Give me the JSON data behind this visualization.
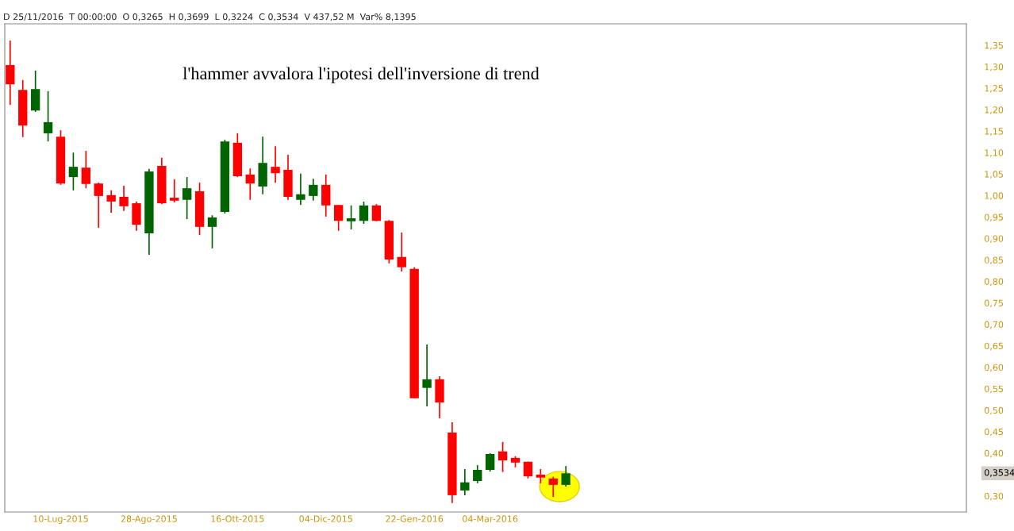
{
  "chart_data": {
    "type": "candlestick",
    "x": [
      "2015-06-12",
      "2015-06-19",
      "2015-06-26",
      "2015-07-03",
      "2015-07-10",
      "2015-07-17",
      "2015-07-24",
      "2015-07-31",
      "2015-08-07",
      "2015-08-14",
      "2015-08-21",
      "2015-08-28",
      "2015-09-04",
      "2015-09-11",
      "2015-09-18",
      "2015-09-25",
      "2015-10-02",
      "2015-10-09",
      "2015-10-16",
      "2015-10-23",
      "2015-10-30",
      "2015-11-06",
      "2015-11-13",
      "2015-11-20",
      "2015-11-27",
      "2015-12-04",
      "2015-12-11",
      "2015-12-18",
      "2015-12-25",
      "2016-01-01",
      "2016-01-08",
      "2016-01-15",
      "2016-01-22",
      "2016-01-29",
      "2016-02-05",
      "2016-02-12",
      "2016-02-19",
      "2016-02-26",
      "2016-03-04",
      "2016-03-11",
      "2016-03-18",
      "2016-03-25",
      "2016-04-01",
      "2016-04-08",
      "2016-04-15"
    ],
    "ohlc": [
      [
        1.304,
        1.361,
        1.211,
        1.259
      ],
      [
        1.246,
        1.269,
        1.136,
        1.163
      ],
      [
        1.198,
        1.291,
        1.195,
        1.248
      ],
      [
        1.145,
        1.243,
        1.126,
        1.171
      ],
      [
        1.137,
        1.152,
        1.025,
        1.028
      ],
      [
        1.043,
        1.1,
        1.012,
        1.067
      ],
      [
        1.065,
        1.104,
        1.017,
        1.027
      ],
      [
        1.028,
        1.03,
        0.925,
        0.999
      ],
      [
        1.001,
        1.012,
        0.96,
        0.986
      ],
      [
        0.997,
        1.023,
        0.964,
        0.975
      ],
      [
        0.982,
        0.986,
        0.918,
        0.932
      ],
      [
        0.912,
        1.062,
        0.862,
        1.056
      ],
      [
        1.069,
        1.088,
        0.98,
        0.982
      ],
      [
        0.995,
        1.038,
        0.984,
        0.988
      ],
      [
        0.99,
        1.043,
        0.945,
        1.017
      ],
      [
        1.01,
        1.03,
        0.908,
        0.927
      ],
      [
        0.927,
        0.954,
        0.877,
        0.949
      ],
      [
        0.962,
        1.13,
        0.958,
        1.126
      ],
      [
        1.123,
        1.145,
        1.043,
        1.045
      ],
      [
        1.049,
        1.063,
        0.99,
        1.028
      ],
      [
        1.021,
        1.137,
        1.003,
        1.076
      ],
      [
        1.067,
        1.115,
        1.03,
        1.052
      ],
      [
        1.06,
        1.095,
        0.99,
        0.997
      ],
      [
        0.99,
        1.051,
        0.978,
        1.003
      ],
      [
        0.999,
        1.039,
        0.988,
        1.025
      ],
      [
        1.025,
        1.049,
        0.951,
        0.977
      ],
      [
        0.978,
        0.978,
        0.918,
        0.941
      ],
      [
        0.94,
        0.977,
        0.921,
        0.947
      ],
      [
        0.941,
        0.986,
        0.934,
        0.977
      ],
      [
        0.977,
        0.98,
        0.94,
        0.941
      ],
      [
        0.941,
        0.943,
        0.842,
        0.851
      ],
      [
        0.857,
        0.914,
        0.823,
        0.833
      ],
      [
        0.829,
        0.833,
        0.528,
        0.528
      ],
      [
        0.552,
        0.653,
        0.509,
        0.572
      ],
      [
        0.572,
        0.579,
        0.481,
        0.518
      ],
      [
        0.448,
        0.472,
        0.284,
        0.302
      ],
      [
        0.313,
        0.363,
        0.302,
        0.332
      ],
      [
        0.335,
        0.372,
        0.33,
        0.361
      ],
      [
        0.361,
        0.4,
        0.357,
        0.398
      ],
      [
        0.404,
        0.426,
        0.356,
        0.383
      ],
      [
        0.389,
        0.393,
        0.367,
        0.378
      ],
      [
        0.38,
        0.38,
        0.341,
        0.346
      ],
      [
        0.35,
        0.363,
        0.33,
        0.343
      ],
      [
        0.341,
        0.345,
        0.298,
        0.326
      ],
      [
        0.326,
        0.37,
        0.322,
        0.353
      ]
    ],
    "colors": [
      "#ff0000",
      "#ff0000",
      "#006400",
      "#006400",
      "#ff0000",
      "#006400",
      "#ff0000",
      "#ff0000",
      "#ff0000",
      "#ff0000",
      "#ff0000",
      "#006400",
      "#ff0000",
      "#ff0000",
      "#006400",
      "#ff0000",
      "#006400",
      "#006400",
      "#ff0000",
      "#ff0000",
      "#006400",
      "#ff0000",
      "#ff0000",
      "#006400",
      "#006400",
      "#ff0000",
      "#ff0000",
      "#006400",
      "#006400",
      "#ff0000",
      "#ff0000",
      "#ff0000",
      "#ff0000",
      "#006400",
      "#ff0000",
      "#ff0000",
      "#006400",
      "#006400",
      "#006400",
      "#ff0000",
      "#ff0000",
      "#ff0000",
      "#ff0000",
      "#ff0000",
      "#006400"
    ],
    "xlim": [
      "2015-06-09",
      "2016-11-23"
    ],
    "xticks": [
      {
        "value": "2015-07-10",
        "label": "10-Lug-2015"
      },
      {
        "value": "2015-08-28",
        "label": "28-Ago-2015"
      },
      {
        "value": "2015-10-16",
        "label": "16-Ott-2015"
      },
      {
        "value": "2015-12-04",
        "label": "04-Dic-2015"
      },
      {
        "value": "2016-01-22",
        "label": "22-Gen-2016"
      },
      {
        "value": "2016-03-04",
        "label": "04-Mar-2016"
      }
    ],
    "ylim": [
      0.263,
      1.4
    ],
    "yticks": [
      {
        "value": 0.3,
        "label": "0,30"
      },
      {
        "value": 0.4,
        "label": "0,40"
      },
      {
        "value": 0.45,
        "label": "0,45"
      },
      {
        "value": 0.5,
        "label": "0,50"
      },
      {
        "value": 0.55,
        "label": "0,55"
      },
      {
        "value": 0.6,
        "label": "0,60"
      },
      {
        "value": 0.65,
        "label": "0,65"
      },
      {
        "value": 0.7,
        "label": "0,70"
      },
      {
        "value": 0.75,
        "label": "0,75"
      },
      {
        "value": 0.8,
        "label": "0,80"
      },
      {
        "value": 0.85,
        "label": "0,85"
      },
      {
        "value": 0.9,
        "label": "0,90"
      },
      {
        "value": 0.95,
        "label": "0,95"
      },
      {
        "value": 1.0,
        "label": "1,00"
      },
      {
        "value": 1.05,
        "label": "1,05"
      },
      {
        "value": 1.1,
        "label": "1,10"
      },
      {
        "value": 1.15,
        "label": "1,15"
      },
      {
        "value": 1.2,
        "label": "1,20"
      },
      {
        "value": 1.25,
        "label": "1,25"
      },
      {
        "value": 1.3,
        "label": "1,30"
      },
      {
        "value": 1.35,
        "label": "1,35"
      }
    ],
    "annotations": [
      "D 25/11/2016  T 00:00:00  O 0,3265  H 0,3699  L 0,3224  C 0,3534  V 437,52 M  Var% 8,1395",
      "l'hammer avvalora l'ipotesi dell'inversione di trend",
      "0,3534"
    ],
    "grid": false
  }
}
